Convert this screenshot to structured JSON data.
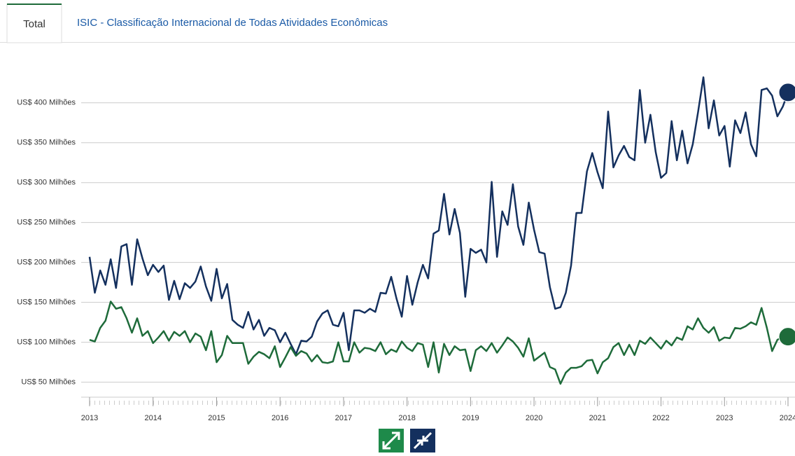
{
  "tabs": [
    "Total",
    "ISIC - Classificação Internacional de Todas Atividades Econômicas"
  ],
  "chart_data": {
    "type": "line",
    "x": [
      2013,
      2013.083,
      2013.167,
      2013.25,
      2013.333,
      2013.417,
      2013.5,
      2013.583,
      2013.667,
      2013.75,
      2013.833,
      2013.917,
      2014,
      2014.083,
      2014.167,
      2014.25,
      2014.333,
      2014.417,
      2014.5,
      2014.583,
      2014.667,
      2014.75,
      2014.833,
      2014.917,
      2015,
      2015.083,
      2015.167,
      2015.25,
      2015.333,
      2015.417,
      2015.5,
      2015.583,
      2015.667,
      2015.75,
      2015.833,
      2015.917,
      2016,
      2016.083,
      2016.167,
      2016.25,
      2016.333,
      2016.417,
      2016.5,
      2016.583,
      2016.667,
      2016.75,
      2016.833,
      2016.917,
      2017,
      2017.083,
      2017.167,
      2017.25,
      2017.333,
      2017.417,
      2017.5,
      2017.583,
      2017.667,
      2017.75,
      2017.833,
      2017.917,
      2018,
      2018.083,
      2018.167,
      2018.25,
      2018.333,
      2018.417,
      2018.5,
      2018.583,
      2018.667,
      2018.75,
      2018.833,
      2018.917,
      2019,
      2019.083,
      2019.167,
      2019.25,
      2019.333,
      2019.417,
      2019.5,
      2019.583,
      2019.667,
      2019.75,
      2019.833,
      2019.917,
      2020,
      2020.083,
      2020.167,
      2020.25,
      2020.333,
      2020.417,
      2020.5,
      2020.583,
      2020.667,
      2020.75,
      2020.833,
      2020.917,
      2021,
      2021.083,
      2021.167,
      2021.25,
      2021.333,
      2021.417,
      2021.5,
      2021.583,
      2021.667,
      2021.75,
      2021.833,
      2021.917,
      2022,
      2022.083,
      2022.167,
      2022.25,
      2022.333,
      2022.417,
      2022.5,
      2022.583,
      2022.667,
      2022.75,
      2022.833,
      2022.917,
      2023,
      2023.083,
      2023.167,
      2023.25,
      2023.333,
      2023.417,
      2023.5,
      2023.583,
      2023.667,
      2023.75,
      2023.833,
      2023.917,
      2024
    ],
    "series": [
      {
        "color": "#14305e",
        "values": [
          207,
          162,
          190,
          172,
          204,
          168,
          220,
          223,
          172,
          229,
          205,
          184,
          197,
          188,
          196,
          153,
          177,
          154,
          174,
          168,
          176,
          195,
          170,
          152,
          192,
          155,
          173,
          128,
          122,
          118,
          138,
          116,
          128,
          108,
          118,
          115,
          100,
          112,
          98,
          85,
          102,
          101,
          107,
          126,
          136,
          140,
          122,
          120,
          137,
          90,
          140,
          140,
          137,
          142,
          138,
          162,
          161,
          182,
          155,
          132,
          183,
          147,
          175,
          197,
          180,
          236,
          240,
          286,
          235,
          267,
          237,
          157,
          217,
          212,
          216,
          200,
          301,
          207,
          264,
          247,
          298,
          245,
          222,
          275,
          241,
          213,
          211,
          169,
          142,
          144,
          162,
          196,
          262,
          262,
          314,
          337,
          313,
          293,
          389,
          319,
          334,
          346,
          332,
          328,
          416,
          350,
          385,
          338,
          306,
          312,
          377,
          328,
          365,
          324,
          348,
          388,
          432,
          368,
          403,
          359,
          371,
          320,
          378,
          362,
          388,
          348,
          333,
          416,
          418,
          409,
          383,
          395,
          413
        ]
      },
      {
        "color": "#1e6b3a",
        "values": [
          103,
          101,
          118,
          127,
          151,
          142,
          144,
          130,
          112,
          130,
          108,
          114,
          99,
          106,
          114,
          102,
          113,
          108,
          114,
          100,
          111,
          107,
          90,
          114,
          75,
          84,
          108,
          99,
          99,
          99,
          73,
          82,
          88,
          85,
          80,
          95,
          69,
          81,
          94,
          83,
          89,
          86,
          76,
          84,
          75,
          74,
          76,
          100,
          76,
          76,
          100,
          87,
          93,
          92,
          89,
          100,
          85,
          91,
          88,
          101,
          93,
          89,
          99,
          97,
          69,
          100,
          62,
          98,
          84,
          95,
          90,
          91,
          64,
          90,
          95,
          89,
          99,
          87,
          96,
          106,
          101,
          93,
          82,
          105,
          77,
          82,
          87,
          69,
          66,
          48,
          62,
          68,
          68,
          70,
          77,
          78,
          61,
          75,
          80,
          94,
          99,
          84,
          97,
          84,
          102,
          98,
          106,
          99,
          92,
          102,
          96,
          106,
          103,
          120,
          116,
          130,
          118,
          112,
          119,
          102,
          106,
          105,
          118,
          117,
          120,
          125,
          122,
          143,
          118,
          89,
          103,
          107,
          107
        ]
      }
    ],
    "xlim": [
      2013,
      2024
    ],
    "xticks": [
      2013,
      2014,
      2015,
      2016,
      2017,
      2018,
      2019,
      2020,
      2021,
      2022,
      2023,
      2024
    ],
    "ylim": [
      33,
      441
    ],
    "yticks": [
      {
        "value": 50,
        "label": "US$ 50 Milhões"
      },
      {
        "value": 100,
        "label": "US$ 100 Milhões"
      },
      {
        "value": 150,
        "label": "US$ 150 Milhões"
      },
      {
        "value": 200,
        "label": "US$ 200 Milhões"
      },
      {
        "value": 250,
        "label": "US$ 250 Milhões"
      },
      {
        "value": 300,
        "label": "US$ 300 Milhões"
      },
      {
        "value": 350,
        "label": "US$ 350 Milhões"
      },
      {
        "value": 400,
        "label": "US$ 400 Milhões"
      }
    ],
    "grid": true
  }
}
